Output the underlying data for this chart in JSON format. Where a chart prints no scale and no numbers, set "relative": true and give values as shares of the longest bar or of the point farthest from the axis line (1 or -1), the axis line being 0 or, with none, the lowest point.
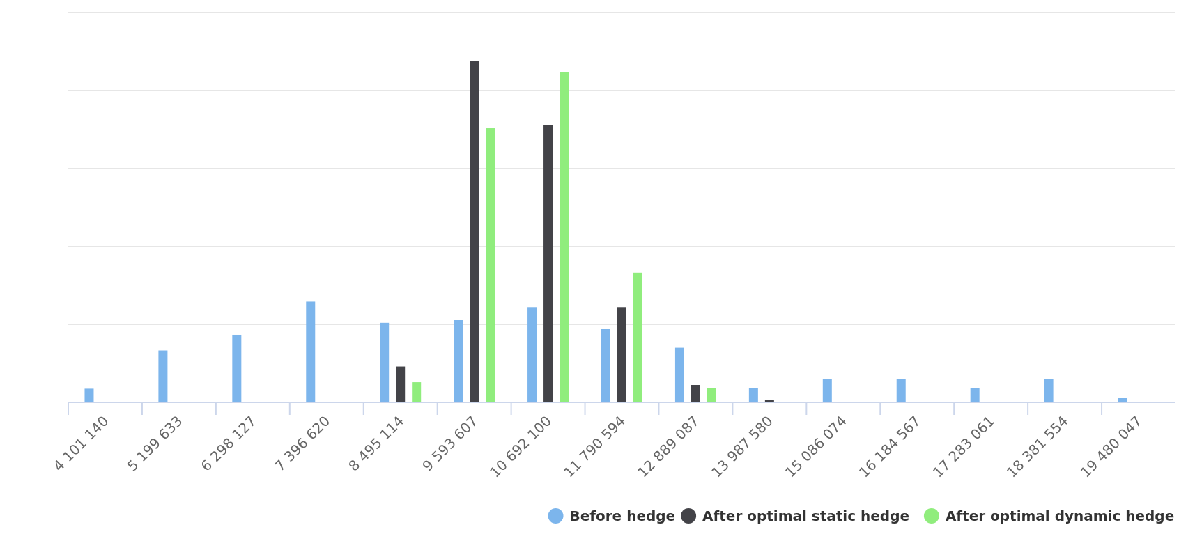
{
  "chart_data": {
    "type": "bar",
    "relative": true,
    "grid": true,
    "legend": "bottom right",
    "categories": [
      "4 101 140",
      "5 199 633",
      "6 298 127",
      "7 396 620",
      "8 495 114",
      "9 593 607",
      "10 692 100",
      "11 790 594",
      "12 889 087",
      "13 987 580",
      "15 086 074",
      "16 184 567",
      "17 283 061",
      "18 381 554",
      "19 480 047"
    ],
    "series": [
      {
        "name": "Before hedge",
        "color": "#7cb5ec",
        "values": [
          0.04,
          0.152,
          0.198,
          0.295,
          0.233,
          0.242,
          0.279,
          0.215,
          0.16,
          0.042,
          0.068,
          0.068,
          0.042,
          0.068,
          0.013
        ]
      },
      {
        "name": "After optimal static hedge",
        "color": "#434348",
        "values": [
          0,
          0,
          0,
          0,
          0.105,
          1,
          0.813,
          0.279,
          0.051,
          0.007,
          0,
          0,
          0,
          0,
          0
        ]
      },
      {
        "name": "After optimal dynamic hedge",
        "color": "#90ed7d",
        "values": [
          0,
          0,
          0,
          0,
          0.059,
          0.804,
          0.969,
          0.38,
          0.042,
          0,
          0,
          0,
          0,
          0,
          0
        ]
      }
    ]
  }
}
